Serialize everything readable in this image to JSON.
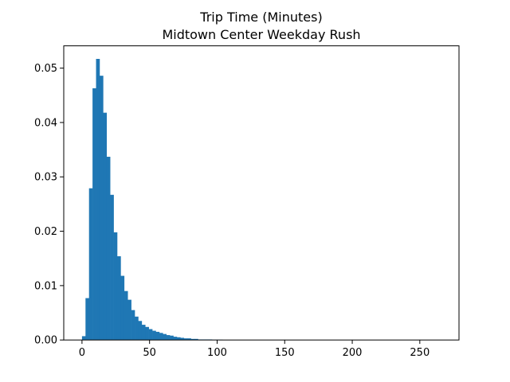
{
  "chart_data": {
    "type": "bar",
    "title": "Trip Time (Minutes)",
    "subtitle": "Midtown Center Weekday Rush",
    "xlabel": "",
    "ylabel": "",
    "xlim": [
      -13.5,
      279
    ],
    "ylim": [
      0,
      0.0541
    ],
    "xticks": [
      0,
      50,
      100,
      150,
      200,
      250
    ],
    "yticks": [
      0.0,
      0.01,
      0.02,
      0.03,
      0.04,
      0.05
    ],
    "ytick_labels": [
      "0.00",
      "0.01",
      "0.02",
      "0.03",
      "0.04",
      "0.05"
    ],
    "grid": false,
    "legend": false,
    "bar_color": "#1f77b4",
    "bin_start": 0,
    "bin_width": 2.6,
    "values": [
      0.0007,
      0.0077,
      0.0279,
      0.0463,
      0.0517,
      0.0486,
      0.0418,
      0.0337,
      0.0267,
      0.0198,
      0.0154,
      0.0118,
      0.009,
      0.0074,
      0.0055,
      0.0043,
      0.0035,
      0.0028,
      0.0024,
      0.002,
      0.0017,
      0.0015,
      0.0013,
      0.0011,
      0.0009,
      0.0008,
      0.0006,
      0.0005,
      0.0004,
      0.0003,
      0.0003,
      0.0002,
      0.0002,
      0.0001,
      0.0001,
      0.0001,
      0.0001,
      5e-05,
      5e-05,
      5e-05,
      3e-05,
      3e-05,
      2e-05,
      2e-05,
      2e-05,
      1e-05,
      1e-05,
      1e-05,
      1e-05,
      1e-05,
      1e-05,
      1e-05,
      1e-05,
      1e-05,
      1e-05,
      1e-05,
      1e-05,
      1e-05,
      1e-05,
      1e-05,
      1e-05,
      1e-05,
      1e-05,
      1e-05,
      1e-05,
      1e-05,
      1e-05,
      1e-05,
      1e-05,
      1e-05,
      1e-05,
      1e-05,
      1e-05,
      1e-05,
      1e-05,
      1e-05,
      1e-05,
      1e-05,
      1e-05,
      1e-05,
      1e-05,
      1e-05,
      1e-05,
      1e-05,
      1e-05,
      1e-05,
      1e-05,
      1e-05,
      1e-05,
      1e-05,
      1e-05,
      1e-05,
      1e-05,
      1e-05,
      1e-05,
      1e-05,
      1e-05,
      1e-05,
      1e-05,
      1e-05,
      1e-05,
      1e-05
    ]
  }
}
